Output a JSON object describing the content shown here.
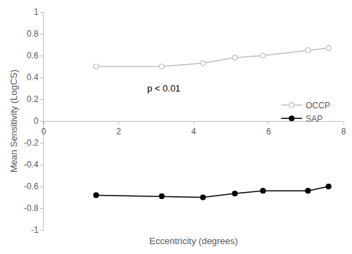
{
  "chart_data": {
    "type": "line",
    "x_label": "Eccentricity (degrees)",
    "y_label": "Mean Sensitivity (LogCS)",
    "annotations": [
      "p < 0.01"
    ],
    "series": [
      {
        "name": "OCCP",
        "color": "#bfbfbf",
        "marker": "circle-open",
        "x": [
          1.4,
          3.15,
          4.25,
          5.1,
          5.85,
          7.05,
          7.6
        ],
        "values": [
          0.5,
          0.5,
          0.53,
          0.58,
          0.6,
          0.65,
          0.67
        ]
      },
      {
        "name": "SAP",
        "color": "#000000",
        "marker": "circle",
        "x": [
          1.4,
          3.15,
          4.25,
          5.1,
          5.85,
          7.05,
          7.6
        ],
        "values": [
          -0.68,
          -0.69,
          -0.7,
          -0.665,
          -0.64,
          -0.64,
          -0.6
        ]
      }
    ],
    "xlim": [
      0,
      8
    ],
    "xticks": [
      0,
      2,
      4,
      6,
      8
    ],
    "ylim": [
      -1,
      1
    ],
    "yticks": [
      -1,
      -0.8,
      -0.6,
      -0.4,
      -0.2,
      0,
      0.2,
      0.4,
      0.6,
      0.8,
      1
    ],
    "grid": false,
    "legend": "right"
  }
}
